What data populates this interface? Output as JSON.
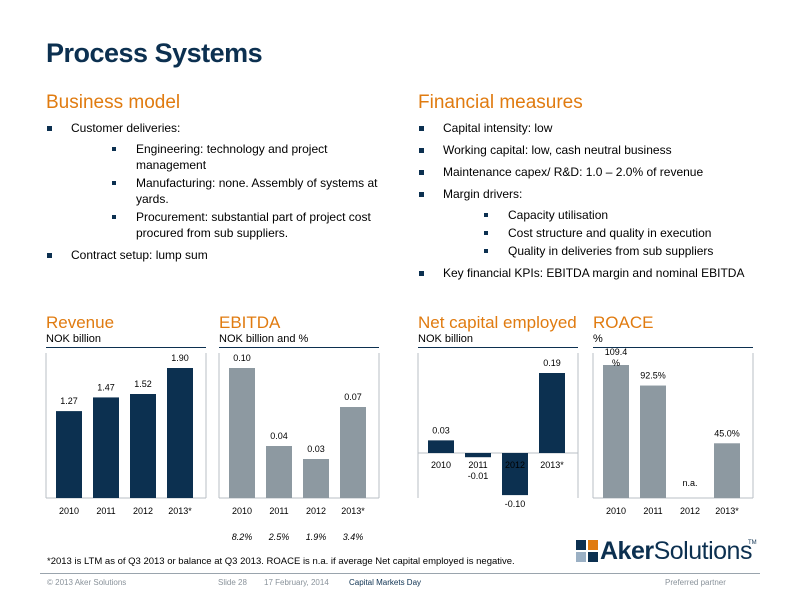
{
  "title": "Process Systems",
  "business_model": {
    "heading": "Business model",
    "bullets": [
      {
        "text": "Customer deliveries:",
        "sub": [
          "Engineering: technology and project management",
          "Manufacturing: none. Assembly of systems at yards.",
          "Procurement: substantial part of project cost procured from sub suppliers."
        ]
      },
      {
        "text": "Contract setup: lump sum",
        "sub": []
      }
    ]
  },
  "financial_measures": {
    "heading": "Financial measures",
    "bullets": [
      {
        "text": "Capital intensity: low",
        "sub": []
      },
      {
        "text": "Working capital: low, cash neutral business",
        "sub": []
      },
      {
        "text": "Maintenance capex/ R&D: 1.0 – 2.0% of revenue",
        "sub": []
      },
      {
        "text": "Margin drivers:",
        "sub": [
          "Capacity utilisation",
          "Cost structure and quality in execution",
          "Quality in deliveries from sub suppliers"
        ]
      },
      {
        "text": "Key financial KPIs: EBITDA margin and nominal EBITDA",
        "sub": []
      }
    ]
  },
  "chart_data": [
    {
      "type": "bar",
      "title": "Revenue",
      "ylabel": "NOK billion",
      "categories": [
        "2010",
        "2011",
        "2012",
        "2013*"
      ],
      "values": [
        1.27,
        1.47,
        1.52,
        1.9
      ],
      "labels": [
        "1.27",
        "1.47",
        "1.52",
        "1.90"
      ],
      "ylim": [
        0,
        1.9
      ],
      "color": "#0c3050"
    },
    {
      "type": "bar",
      "title": "EBITDA",
      "ylabel": "NOK billion and %",
      "categories": [
        "2010",
        "2011",
        "2012",
        "2013*"
      ],
      "values": [
        0.1,
        0.04,
        0.03,
        0.07
      ],
      "labels": [
        "0.10",
        "0.04",
        "0.03",
        "0.07"
      ],
      "margins": [
        "8.2%",
        "2.5%",
        "1.9%",
        "3.4%"
      ],
      "ylim": [
        0,
        0.1
      ],
      "color": "#8d99a1"
    },
    {
      "type": "bar",
      "title": "Net capital employed",
      "ylabel": "NOK billion",
      "categories": [
        "2010",
        "2011",
        "2012",
        "2013*"
      ],
      "values": [
        0.03,
        -0.01,
        -0.1,
        0.19
      ],
      "labels": [
        "0.03",
        "-0.01",
        "-0.10",
        "0.19"
      ],
      "ylim": [
        -0.1,
        0.19
      ],
      "color": "#0c3050"
    },
    {
      "type": "bar",
      "title": "ROACE",
      "ylabel": "%",
      "categories": [
        "2010",
        "2011",
        "2012",
        "2013*"
      ],
      "values": [
        109.4,
        92.5,
        null,
        45.0
      ],
      "labels": [
        "109.4 %",
        "92.5%",
        "n.a.",
        "45.0%"
      ],
      "ylim": [
        0,
        109.4
      ],
      "color": "#8d99a1"
    }
  ],
  "footnote": "*2013 is LTM as of Q3 2013 or balance at Q3 2013. ROACE is n.a. if average Net capital employed is negative.",
  "footer": {
    "copyright": "© 2013 Aker Solutions",
    "slide": "Slide 28",
    "date": "17 February, 2014",
    "event": "Capital Markets Day",
    "tagline": "Preferred partner"
  },
  "logo": {
    "part1": "Aker",
    "part2": "Solutions",
    "tm": "TM"
  }
}
